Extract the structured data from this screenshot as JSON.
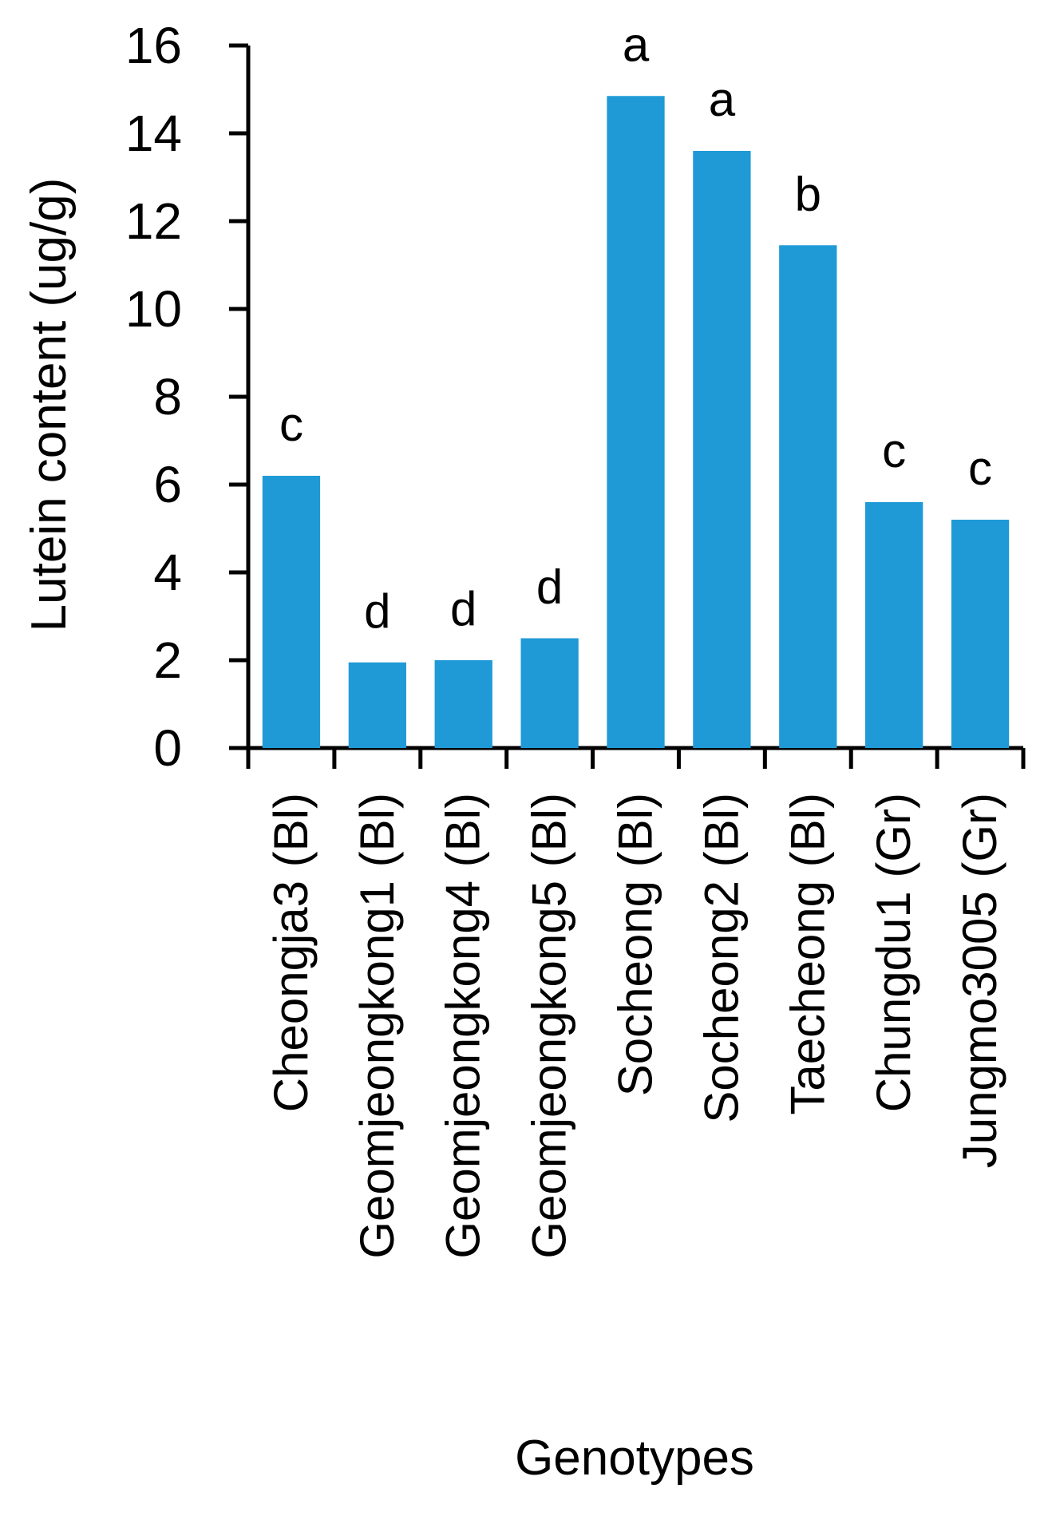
{
  "chart_data": {
    "type": "bar",
    "categories": [
      "Cheongja3 (Bl)",
      "Geomjeongkong1 (Bl)",
      "Geomjeongkong4 (Bl)",
      "Geomjeongkong5 (Bl)",
      "Socheong (Bl)",
      "Socheong2 (Bl)",
      "Taecheong (Bl)",
      "Chungdu1 (Gr)",
      "Jungmo3005 (Gr)"
    ],
    "values": [
      6.2,
      1.95,
      2.0,
      2.5,
      14.85,
      13.6,
      11.45,
      5.6,
      5.2
    ],
    "significance": [
      "c",
      "d",
      "d",
      "d",
      "a",
      "a",
      "b",
      "c",
      "c"
    ],
    "xlabel": "Genotypes",
    "ylabel": "Lutein content (ug/g)",
    "ylim": [
      0,
      16
    ],
    "yticks": [
      0,
      2,
      4,
      6,
      8,
      10,
      12,
      14,
      16
    ],
    "grid": false,
    "legend": "none",
    "bar_color": "#1F9AD6",
    "axis_color": "#000000"
  }
}
